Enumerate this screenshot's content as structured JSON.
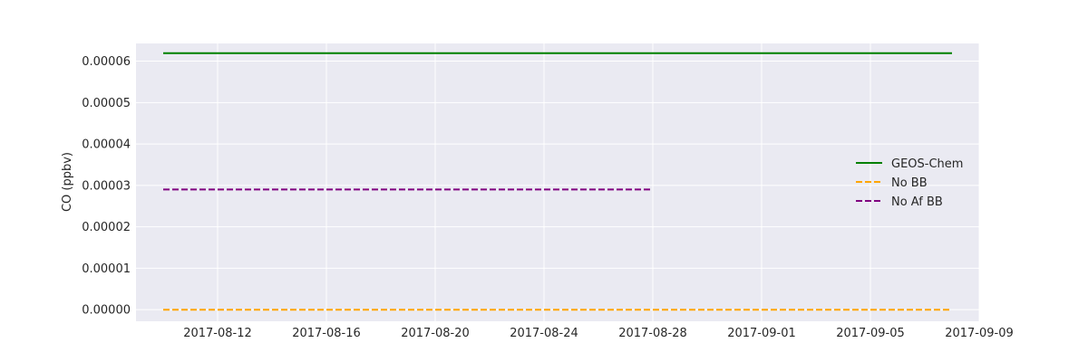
{
  "chart_data": {
    "type": "line",
    "title": "",
    "xlabel": "",
    "ylabel": "CO (ppbv)",
    "x_type": "date",
    "xlim": [
      "2017-08-09",
      "2017-09-09"
    ],
    "ylim": [
      -2.8e-06,
      6.427e-05
    ],
    "x_ticks": [
      "2017-08-12",
      "2017-08-16",
      "2017-08-20",
      "2017-08-24",
      "2017-08-28",
      "2017-09-01",
      "2017-09-05",
      "2017-09-09"
    ],
    "y_ticks": [
      {
        "value": 0,
        "label": "0.00000"
      },
      {
        "value": 1e-05,
        "label": "0.00001"
      },
      {
        "value": 2e-05,
        "label": "0.00002"
      },
      {
        "value": 3e-05,
        "label": "0.00003"
      },
      {
        "value": 4e-05,
        "label": "0.00004"
      },
      {
        "value": 5e-05,
        "label": "0.00005"
      },
      {
        "value": 6e-05,
        "label": "0.00006"
      }
    ],
    "grid": true,
    "background": "#eaeaf2",
    "legend_position": "center-right",
    "series": [
      {
        "name": "GEOS-Chem",
        "color": "#008000",
        "dash": "solid",
        "x": [
          "2017-08-10",
          "2017-09-08"
        ],
        "y": [
          6.19e-05,
          6.19e-05
        ]
      },
      {
        "name": "No BB",
        "color": "#ffa500",
        "dash": "dashed",
        "x": [
          "2017-08-10",
          "2017-09-08"
        ],
        "y": [
          0,
          0
        ]
      },
      {
        "name": "No Af BB",
        "color": "#800080",
        "dash": "dashed",
        "x": [
          "2017-08-10",
          "2017-08-28"
        ],
        "y": [
          2.9e-05,
          2.9e-05
        ]
      }
    ]
  }
}
